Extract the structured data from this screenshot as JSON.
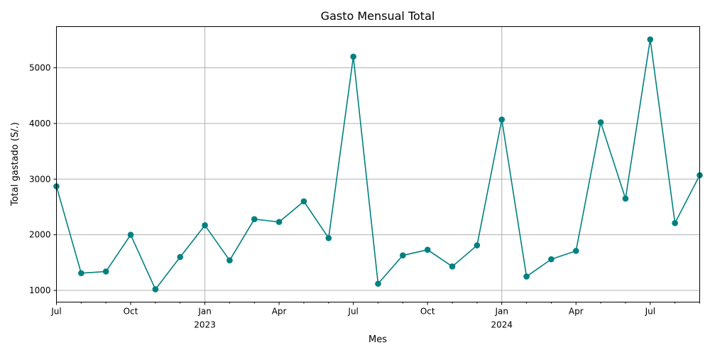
{
  "chart_data": {
    "type": "line",
    "title": "Gasto Mensual Total",
    "xlabel": "Mes",
    "ylabel": "Total gastado (S/.)",
    "color": "#008080",
    "grid": true,
    "ylim": [
      790,
      5740
    ],
    "yticks": [
      1000,
      2000,
      3000,
      4000,
      5000
    ],
    "xlim": [
      "2022-07",
      "2024-09"
    ],
    "x_major_ticks": [
      {
        "month": "2022-07",
        "label": "Jul",
        "sublabel": ""
      },
      {
        "month": "2022-10",
        "label": "Oct",
        "sublabel": ""
      },
      {
        "month": "2023-01",
        "label": "Jan",
        "sublabel": "2023"
      },
      {
        "month": "2023-04",
        "label": "Apr",
        "sublabel": ""
      },
      {
        "month": "2023-07",
        "label": "Jul",
        "sublabel": ""
      },
      {
        "month": "2023-10",
        "label": "Oct",
        "sublabel": ""
      },
      {
        "month": "2024-01",
        "label": "Jan",
        "sublabel": "2024"
      },
      {
        "month": "2024-04",
        "label": "Apr",
        "sublabel": ""
      },
      {
        "month": "2024-07",
        "label": "Jul",
        "sublabel": ""
      }
    ],
    "x_gridlines": [
      "2023-01",
      "2024-01"
    ],
    "x": [
      "2022-07",
      "2022-08",
      "2022-09",
      "2022-10",
      "2022-11",
      "2022-12",
      "2023-01",
      "2023-02",
      "2023-03",
      "2023-04",
      "2023-05",
      "2023-06",
      "2023-07",
      "2023-08",
      "2023-09",
      "2023-10",
      "2023-11",
      "2023-12",
      "2024-01",
      "2024-02",
      "2024-03",
      "2024-04",
      "2024-05",
      "2024-06",
      "2024-07",
      "2024-08",
      "2024-09"
    ],
    "values": [
      2870,
      1310,
      1340,
      2000,
      1020,
      1600,
      2170,
      1540,
      2280,
      2230,
      2600,
      1940,
      5200,
      1120,
      1630,
      1730,
      1430,
      1810,
      4070,
      1250,
      1560,
      1710,
      4020,
      2650,
      5510,
      2210,
      3070
    ]
  }
}
